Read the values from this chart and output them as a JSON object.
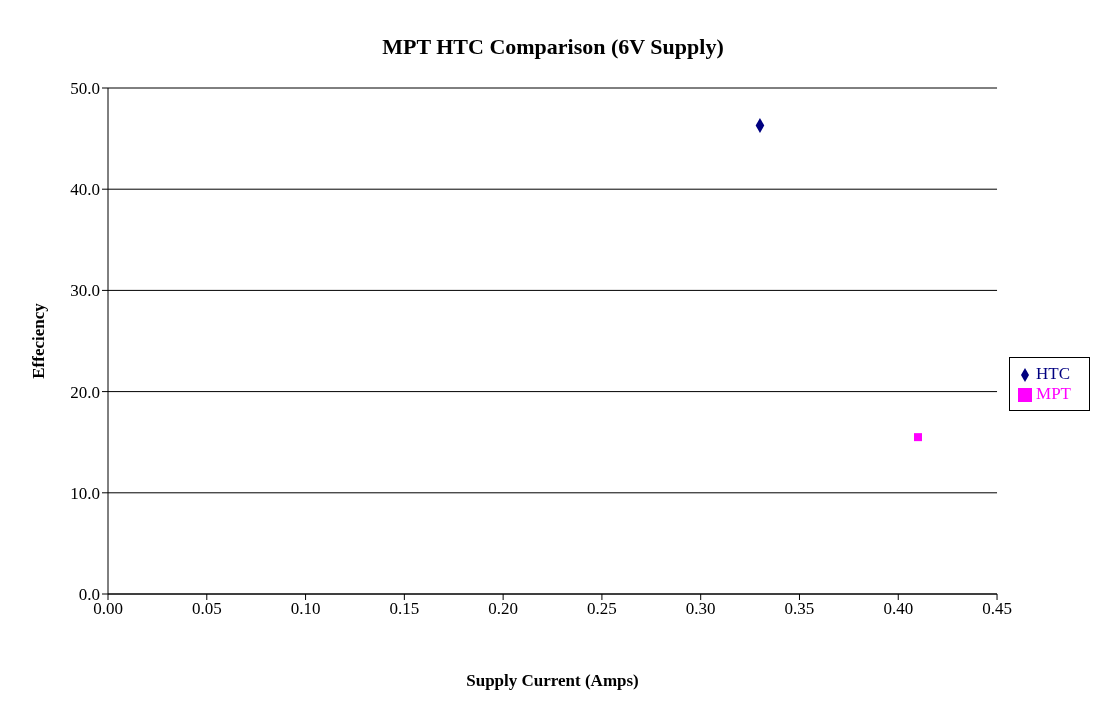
{
  "chart_data": {
    "type": "scatter",
    "title": "MPT HTC Comparison (6V Supply)",
    "xlabel": "Supply Current (Amps)",
    "ylabel": "Effeciency",
    "xlim": [
      0,
      0.45
    ],
    "xticks": [
      {
        "value": 0,
        "label": "0.00"
      },
      {
        "value": 0.05,
        "label": "0.05"
      },
      {
        "value": 0.1,
        "label": "0.10"
      },
      {
        "value": 0.15,
        "label": "0.15"
      },
      {
        "value": 0.2,
        "label": "0.20"
      },
      {
        "value": 0.25,
        "label": "0.25"
      },
      {
        "value": 0.3,
        "label": "0.30"
      },
      {
        "value": 0.35,
        "label": "0.35"
      },
      {
        "value": 0.4,
        "label": "0.40"
      },
      {
        "value": 0.45,
        "label": "0.45"
      }
    ],
    "ylim": [
      0,
      50
    ],
    "yticks": [
      {
        "value": 0,
        "label": "0.0"
      },
      {
        "value": 10,
        "label": "10.0"
      },
      {
        "value": 20,
        "label": "20.0"
      },
      {
        "value": 30,
        "label": "30.0"
      },
      {
        "value": 40,
        "label": "40.0"
      },
      {
        "value": 50,
        "label": "50.0"
      }
    ],
    "grid": "y",
    "legend": "right",
    "series": [
      {
        "name": "HTC",
        "color": "#000080",
        "marker": "diamond",
        "x": [
          0.33
        ],
        "values": [
          46.3
        ]
      },
      {
        "name": "MPT",
        "color": "#ff00ff",
        "marker": "square",
        "x": [
          0.41
        ],
        "values": [
          15.5
        ]
      }
    ]
  }
}
